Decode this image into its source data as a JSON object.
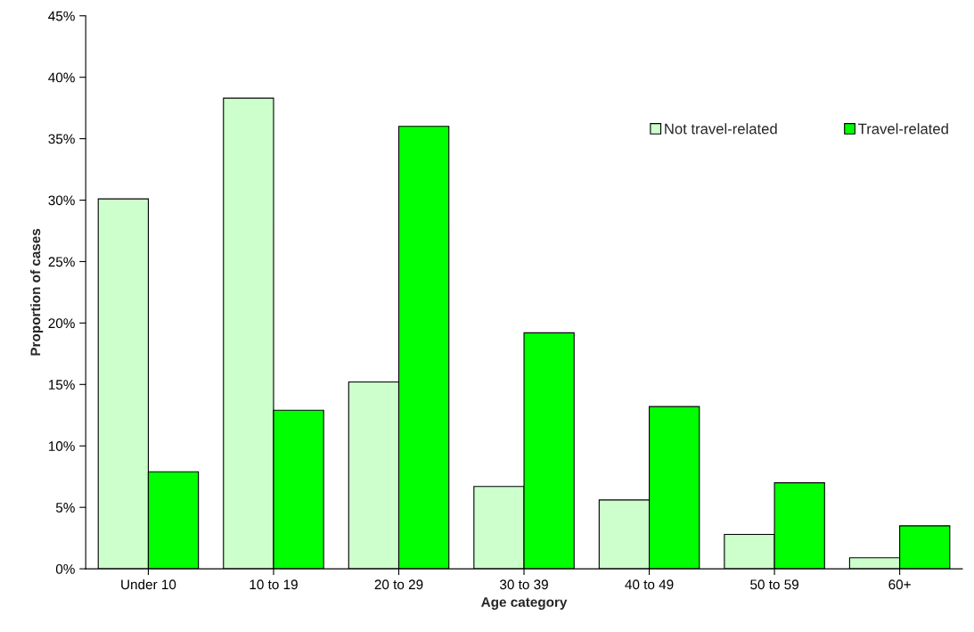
{
  "chart_data": {
    "type": "bar",
    "xlabel": "Age category",
    "ylabel": "Proportion of cases",
    "categories": [
      "Under 10",
      "10 to 19",
      "20 to 29",
      "30 to 39",
      "40 to 49",
      "50 to 59",
      "60+"
    ],
    "series": [
      {
        "name": "Not travel-related",
        "color": "#ccffcc",
        "values": [
          30.1,
          38.3,
          15.2,
          6.7,
          5.6,
          2.8,
          0.9
        ]
      },
      {
        "name": "Travel-related",
        "color": "#00ff00",
        "values": [
          7.9,
          12.9,
          36.0,
          19.2,
          13.2,
          7.0,
          3.5
        ]
      }
    ],
    "ylim": [
      0,
      45
    ],
    "yticks": [
      {
        "value": 0,
        "label": "0%"
      },
      {
        "value": 5,
        "label": "5%"
      },
      {
        "value": 10,
        "label": "10%"
      },
      {
        "value": 15,
        "label": "15%"
      },
      {
        "value": 20,
        "label": "20%"
      },
      {
        "value": 25,
        "label": "25%"
      },
      {
        "value": 30,
        "label": "30%"
      },
      {
        "value": 35,
        "label": "35%"
      },
      {
        "value": 40,
        "label": "40%"
      },
      {
        "value": 45,
        "label": "45%"
      }
    ],
    "grid": false,
    "legend": "top right"
  }
}
